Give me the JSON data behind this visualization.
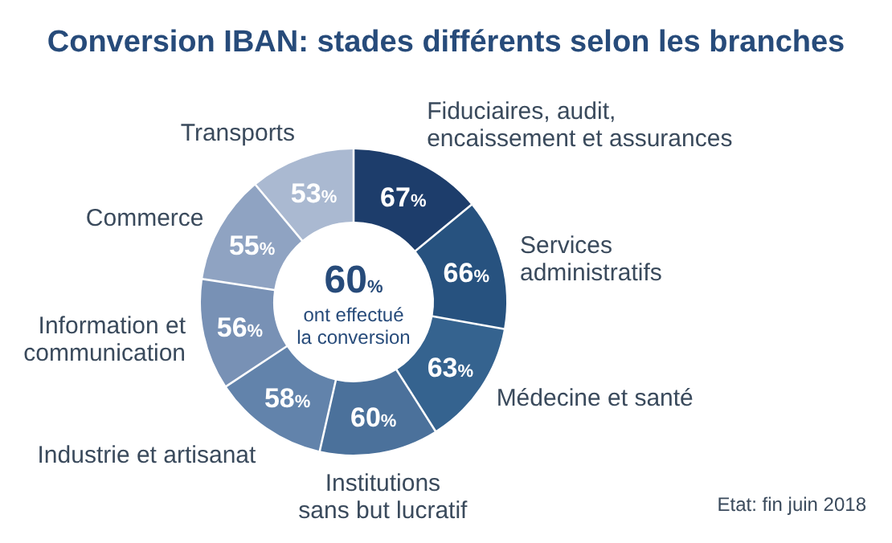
{
  "chart_data": {
    "type": "donut",
    "title": "Conversion IBAN: stades différents selon les branches",
    "categories": [
      "Fiduciaires, audit,\nencaissement et assurances",
      "Services\nadministratifs",
      "Médecine et santé",
      "Institutions\nsans but lucratif",
      "Industrie et artisanat",
      "Information et\ncommunication",
      "Commerce",
      "Transports"
    ],
    "values": [
      67,
      66,
      63,
      60,
      58,
      56,
      55,
      53
    ],
    "value_labels": [
      "67%",
      "66%",
      "63%",
      "60%",
      "58%",
      "56%",
      "55%",
      "53%"
    ],
    "colors": [
      "#1d3d6b",
      "#27527f",
      "#35638f",
      "#4b719b",
      "#6283ab",
      "#7891b5",
      "#8fa3c2",
      "#aab9d1"
    ],
    "annotations": [
      "60%",
      "ont effectué\nla conversion",
      "Etat: fin juin 2018"
    ]
  }
}
